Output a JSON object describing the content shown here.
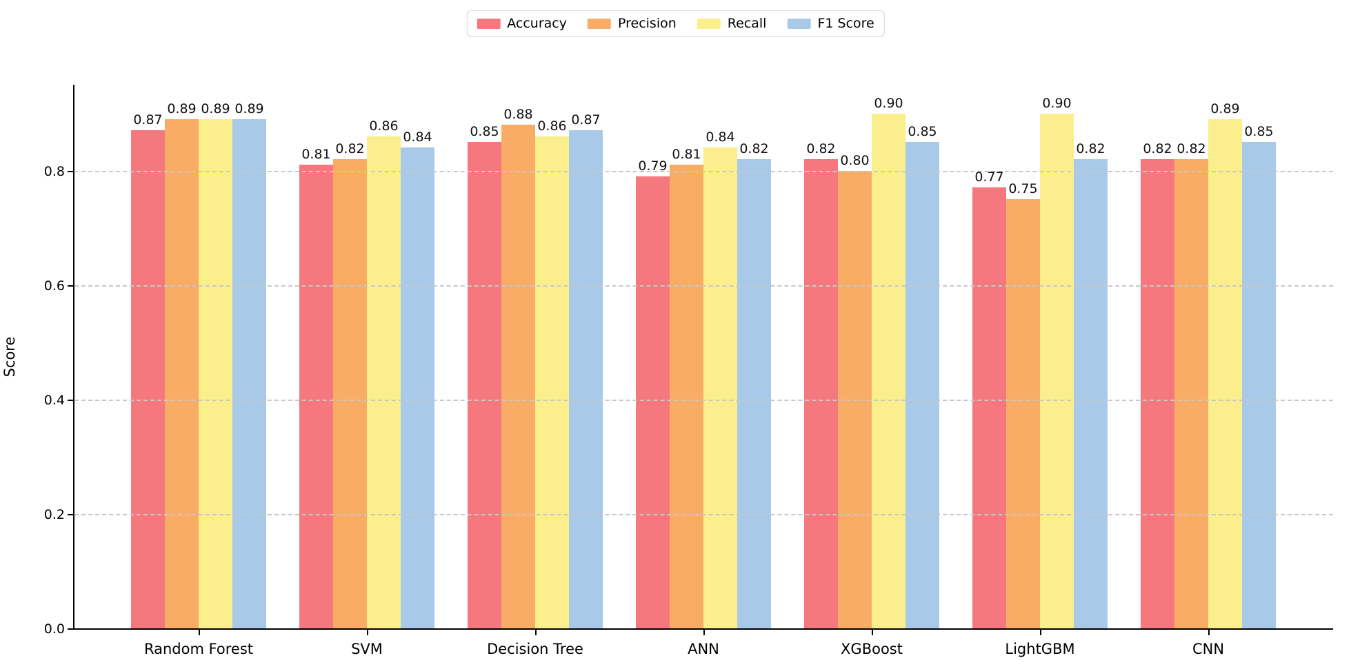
{
  "chart_data": {
    "type": "bar",
    "title": "",
    "xlabel": "",
    "ylabel": "Score",
    "categories": [
      "Random Forest",
      "SVM",
      "Decision Tree",
      "ANN",
      "XGBoost",
      "LightGBM",
      "CNN"
    ],
    "series": [
      {
        "name": "Accuracy",
        "color": "#F4787D",
        "values": [
          0.87,
          0.81,
          0.85,
          0.79,
          0.82,
          0.77,
          0.82
        ]
      },
      {
        "name": "Precision",
        "color": "#F9AC66",
        "values": [
          0.89,
          0.82,
          0.88,
          0.81,
          0.8,
          0.75,
          0.82
        ]
      },
      {
        "name": "Recall",
        "color": "#FAEE8D",
        "values": [
          0.89,
          0.86,
          0.86,
          0.84,
          0.9,
          0.9,
          0.89
        ]
      },
      {
        "name": "F1 Score",
        "color": "#A8CAE8",
        "values": [
          0.89,
          0.84,
          0.87,
          0.82,
          0.85,
          0.82,
          0.85
        ]
      }
    ],
    "ylim": [
      0,
      0.95
    ],
    "yticks": [
      "0.0",
      "0.2",
      "0.4",
      "0.6",
      "0.8"
    ],
    "value_label_format": "2-decimals",
    "grid": "horizontal-dashed-over-bars",
    "legend_position": "top-center",
    "axis_color": "#000000",
    "grid_color": "#c8c8c8"
  }
}
